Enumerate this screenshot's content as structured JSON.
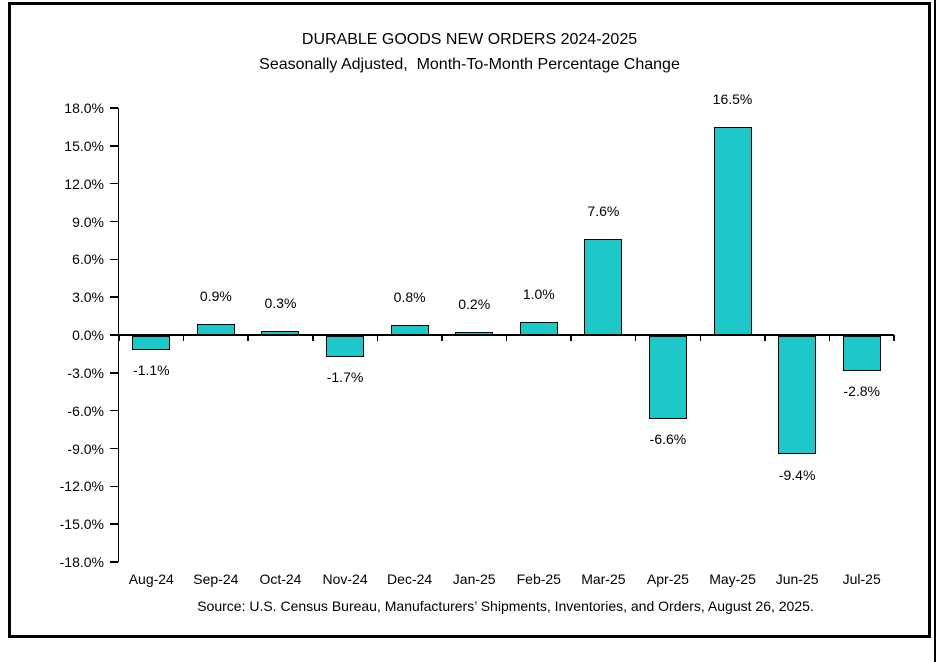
{
  "figure": {
    "source_note": "Source: U.S. Census Bureau, Manufacturers’ Shipments, Inventories, and Orders, August 26, 2025."
  },
  "chart_data": {
    "type": "bar",
    "title": "DURABLE GOODS NEW ORDERS 2024-2025",
    "subtitle": "Seasonally Adjusted,  Month-To-Month Percentage Change",
    "categories": [
      "Aug-24",
      "Sep-24",
      "Oct-24",
      "Nov-24",
      "Dec-24",
      "Jan-25",
      "Feb-25",
      "Mar-25",
      "Apr-25",
      "May-25",
      "Jun-25",
      "Jul-25"
    ],
    "values": [
      -1.1,
      0.9,
      0.3,
      -1.7,
      0.8,
      0.2,
      1.0,
      7.6,
      -6.6,
      16.5,
      -9.4,
      -2.8
    ],
    "data_labels": [
      "-1.1%",
      "0.9%",
      "0.3%",
      "-1.7%",
      "0.8%",
      "0.2%",
      "1.0%",
      "7.6%",
      "-6.6%",
      "16.5%",
      "-9.4%",
      "-2.8%"
    ],
    "xlabel": "",
    "ylabel": "",
    "ylim": [
      -18,
      18
    ],
    "ytick_step": 3,
    "ytick_labels": [
      "18.0%",
      "15.0%",
      "12.0%",
      "9.0%",
      "6.0%",
      "3.0%",
      "0.0%",
      "-3.0%",
      "-6.0%",
      "-9.0%",
      "-12.0%",
      "-15.0%",
      "-18.0%"
    ],
    "grid": false,
    "legend": "none",
    "bar_color": "#1EC8C8",
    "bar_border_color": "#000000",
    "axis_color": "#000000",
    "source_note": "Source: U.S. Census Bureau, Manufacturers’ Shipments, Inventories, and Orders, August 26, 2025."
  }
}
